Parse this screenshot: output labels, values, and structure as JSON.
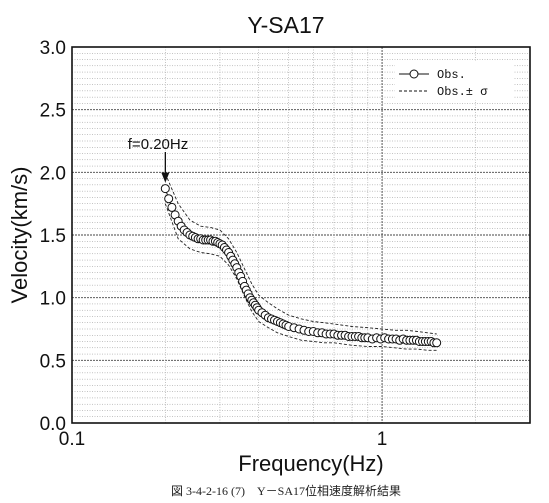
{
  "chart_data": {
    "type": "scatter",
    "title": "Y-SA17",
    "xlabel": "Frequency(Hz)",
    "ylabel": "Velocity(km/s)",
    "xscale": "log",
    "xlim": [
      0.1,
      3.0
    ],
    "ylim": [
      0.0,
      3.0
    ],
    "xticks": [
      "0.1",
      "1"
    ],
    "yticks": [
      "0.0",
      "0.5",
      "1.0",
      "1.5",
      "2.0",
      "2.5",
      "3.0"
    ],
    "grid": true,
    "legend_position": "top-right",
    "legend": [
      "Obs.",
      "Obs.± σ"
    ],
    "annotation": "f=0.20Hz",
    "annotation_x": 0.2,
    "series": [
      {
        "name": "Obs.",
        "style": "open-circle-line",
        "x": [
          0.2,
          0.205,
          0.21,
          0.215,
          0.22,
          0.225,
          0.23,
          0.235,
          0.24,
          0.245,
          0.25,
          0.255,
          0.26,
          0.265,
          0.27,
          0.275,
          0.28,
          0.285,
          0.29,
          0.295,
          0.3,
          0.305,
          0.31,
          0.315,
          0.32,
          0.325,
          0.33,
          0.335,
          0.34,
          0.345,
          0.35,
          0.355,
          0.36,
          0.365,
          0.37,
          0.375,
          0.38,
          0.385,
          0.39,
          0.395,
          0.4,
          0.41,
          0.42,
          0.43,
          0.44,
          0.45,
          0.46,
          0.47,
          0.48,
          0.49,
          0.5,
          0.52,
          0.54,
          0.56,
          0.58,
          0.6,
          0.62,
          0.64,
          0.66,
          0.68,
          0.7,
          0.72,
          0.74,
          0.76,
          0.78,
          0.8,
          0.82,
          0.84,
          0.86,
          0.88,
          0.9,
          0.93,
          0.96,
          0.99,
          1.02,
          1.05,
          1.08,
          1.11,
          1.14,
          1.17,
          1.2,
          1.23,
          1.26,
          1.29,
          1.32,
          1.35,
          1.38,
          1.41,
          1.44,
          1.47,
          1.5
        ],
        "y": [
          1.87,
          1.79,
          1.72,
          1.66,
          1.61,
          1.57,
          1.54,
          1.52,
          1.5,
          1.49,
          1.48,
          1.47,
          1.47,
          1.46,
          1.46,
          1.46,
          1.46,
          1.45,
          1.45,
          1.44,
          1.43,
          1.42,
          1.4,
          1.38,
          1.36,
          1.33,
          1.3,
          1.27,
          1.24,
          1.2,
          1.17,
          1.13,
          1.09,
          1.06,
          1.03,
          1.0,
          0.98,
          0.96,
          0.94,
          0.92,
          0.9,
          0.88,
          0.86,
          0.84,
          0.83,
          0.82,
          0.81,
          0.8,
          0.79,
          0.78,
          0.77,
          0.76,
          0.75,
          0.74,
          0.73,
          0.73,
          0.72,
          0.72,
          0.71,
          0.71,
          0.71,
          0.7,
          0.7,
          0.7,
          0.69,
          0.69,
          0.69,
          0.69,
          0.68,
          0.68,
          0.68,
          0.67,
          0.68,
          0.67,
          0.68,
          0.67,
          0.67,
          0.67,
          0.66,
          0.67,
          0.66,
          0.66,
          0.66,
          0.66,
          0.65,
          0.65,
          0.65,
          0.65,
          0.65,
          0.64,
          0.64
        ]
      },
      {
        "name": "Obs.± σ",
        "style": "dashed",
        "x": [
          0.2,
          0.22,
          0.24,
          0.26,
          0.28,
          0.3,
          0.32,
          0.34,
          0.36,
          0.38,
          0.4,
          0.43,
          0.46,
          0.5,
          0.55,
          0.6,
          0.65,
          0.7,
          0.8,
          0.9,
          1.0,
          1.1,
          1.2,
          1.3,
          1.4,
          1.5
        ],
        "upper": [
          1.99,
          1.75,
          1.62,
          1.57,
          1.56,
          1.54,
          1.47,
          1.36,
          1.23,
          1.11,
          1.02,
          0.96,
          0.91,
          0.86,
          0.83,
          0.81,
          0.8,
          0.79,
          0.77,
          0.76,
          0.75,
          0.74,
          0.74,
          0.73,
          0.72,
          0.71
        ],
        "lower": [
          1.75,
          1.47,
          1.39,
          1.36,
          1.35,
          1.33,
          1.26,
          1.15,
          1.01,
          0.89,
          0.81,
          0.76,
          0.72,
          0.69,
          0.66,
          0.65,
          0.64,
          0.64,
          0.62,
          0.61,
          0.61,
          0.6,
          0.59,
          0.59,
          0.58,
          0.58
        ]
      }
    ]
  },
  "caption": "図 3-4-2-16 (7)　Y－SA17位相速度解析結果"
}
